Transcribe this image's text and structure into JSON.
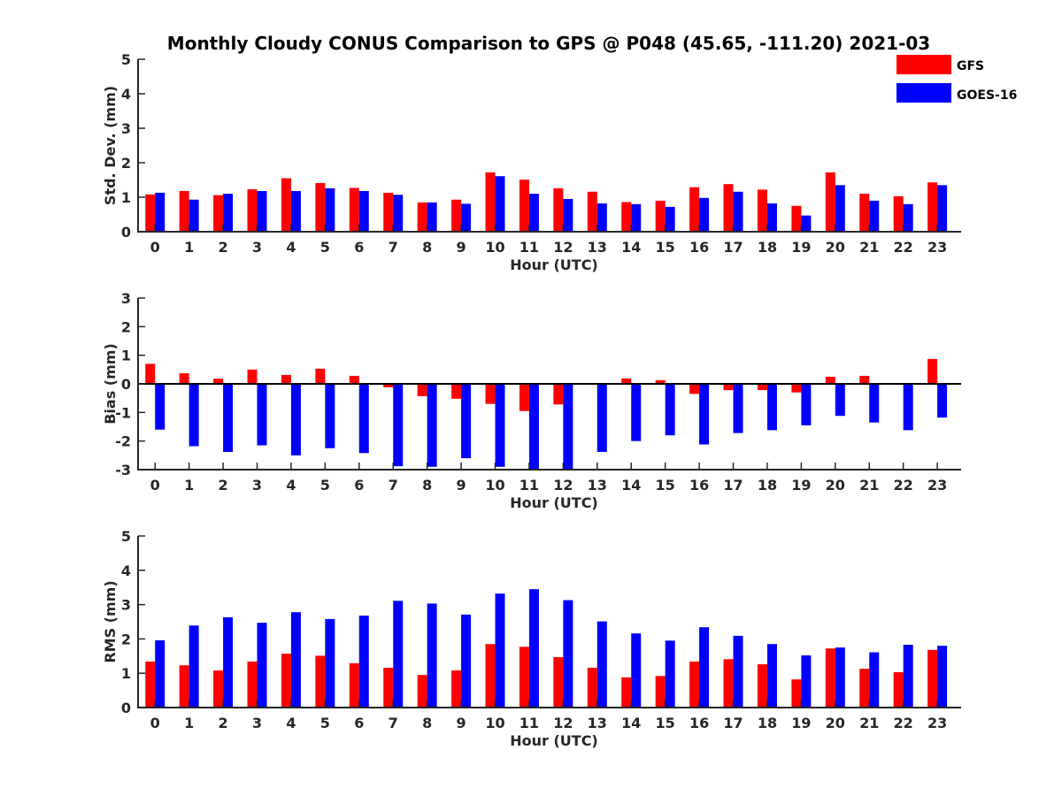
{
  "colors": {
    "gfs": "#ff0000",
    "goes": "#0000ff",
    "axis": "#262626"
  },
  "chart_data": {
    "title": "Monthly Cloudy CONUS Comparison to GPS @ P048 (45.65, -111.20) 2021-03",
    "legend": {
      "placement": "top-right",
      "entries": [
        "GFS",
        "GOES-16"
      ]
    },
    "series_names": [
      "GFS",
      "GOES-16"
    ],
    "panels": [
      {
        "type": "bar",
        "name": "std",
        "xlabel": "Hour (UTC)",
        "ylabel": "Std. Dev. (mm)",
        "ylim": [
          0,
          5
        ],
        "yticks": [
          0,
          1,
          2,
          3,
          4,
          5
        ],
        "categories": [
          "0",
          "1",
          "2",
          "3",
          "4",
          "5",
          "6",
          "7",
          "8",
          "9",
          "10",
          "11",
          "12",
          "13",
          "14",
          "15",
          "16",
          "17",
          "18",
          "19",
          "20",
          "21",
          "22",
          "23"
        ],
        "series": [
          {
            "name": "GFS",
            "values": [
              1.08,
              1.18,
              1.06,
              1.23,
              1.55,
              1.41,
              1.27,
              1.13,
              0.85,
              0.93,
              1.72,
              1.51,
              1.26,
              1.16,
              0.86,
              0.9,
              1.29,
              1.38,
              1.22,
              0.75,
              1.72,
              1.1,
              1.03,
              1.43
            ]
          },
          {
            "name": "GOES-16",
            "values": [
              1.13,
              0.93,
              1.1,
              1.18,
              1.18,
              1.26,
              1.18,
              1.07,
              0.85,
              0.81,
              1.61,
              1.1,
              0.95,
              0.82,
              0.8,
              0.72,
              0.98,
              1.16,
              0.82,
              0.47,
              1.35,
              0.9,
              0.8,
              1.35
            ]
          }
        ]
      },
      {
        "type": "bar",
        "name": "bias",
        "xlabel": "Hour (UTC)",
        "ylabel": "Bias (mm)",
        "ylim": [
          -3,
          3
        ],
        "yticks": [
          -3,
          -2,
          -1,
          0,
          1,
          2,
          3
        ],
        "categories": [
          "0",
          "1",
          "2",
          "3",
          "4",
          "5",
          "6",
          "7",
          "8",
          "9",
          "10",
          "11",
          "12",
          "13",
          "14",
          "15",
          "16",
          "17",
          "18",
          "19",
          "20",
          "21",
          "22",
          "23"
        ],
        "series": [
          {
            "name": "GFS",
            "values": [
              0.7,
              0.37,
              0.18,
              0.5,
              0.31,
              0.53,
              0.28,
              -0.12,
              -0.43,
              -0.52,
              -0.7,
              -0.95,
              -0.72,
              -0.03,
              0.19,
              0.13,
              -0.35,
              -0.22,
              -0.22,
              -0.3,
              0.25,
              0.28,
              -0.02,
              0.87
            ]
          },
          {
            "name": "GOES-16",
            "values": [
              -1.6,
              -2.18,
              -2.38,
              -2.15,
              -2.5,
              -2.25,
              -2.42,
              -2.88,
              -2.9,
              -2.6,
              -2.9,
              -3.02,
              -3.02,
              -2.38,
              -2.0,
              -1.8,
              -2.12,
              -1.72,
              -1.62,
              -1.45,
              -1.12,
              -1.35,
              -1.62,
              -1.18
            ]
          }
        ]
      },
      {
        "type": "bar",
        "name": "rms",
        "xlabel": "Hour (UTC)",
        "ylabel": "RMS (mm)",
        "ylim": [
          0,
          5
        ],
        "yticks": [
          0,
          1,
          2,
          3,
          4,
          5
        ],
        "categories": [
          "0",
          "1",
          "2",
          "3",
          "4",
          "5",
          "6",
          "7",
          "8",
          "9",
          "10",
          "11",
          "12",
          "13",
          "14",
          "15",
          "16",
          "17",
          "18",
          "19",
          "20",
          "21",
          "22",
          "23"
        ],
        "series": [
          {
            "name": "GFS",
            "values": [
              1.34,
              1.23,
              1.08,
              1.34,
              1.57,
              1.51,
              1.29,
              1.16,
              0.95,
              1.08,
              1.85,
              1.77,
              1.47,
              1.16,
              0.88,
              0.92,
              1.34,
              1.41,
              1.26,
              0.82,
              1.72,
              1.13,
              1.03,
              1.68
            ]
          },
          {
            "name": "GOES-16",
            "values": [
              1.96,
              2.39,
              2.63,
              2.47,
              2.78,
              2.58,
              2.68,
              3.11,
              3.03,
              2.71,
              3.32,
              3.45,
              3.13,
              2.51,
              2.16,
              1.95,
              2.34,
              2.09,
              1.85,
              1.52,
              1.75,
              1.61,
              1.83,
              1.8
            ]
          }
        ]
      }
    ]
  }
}
